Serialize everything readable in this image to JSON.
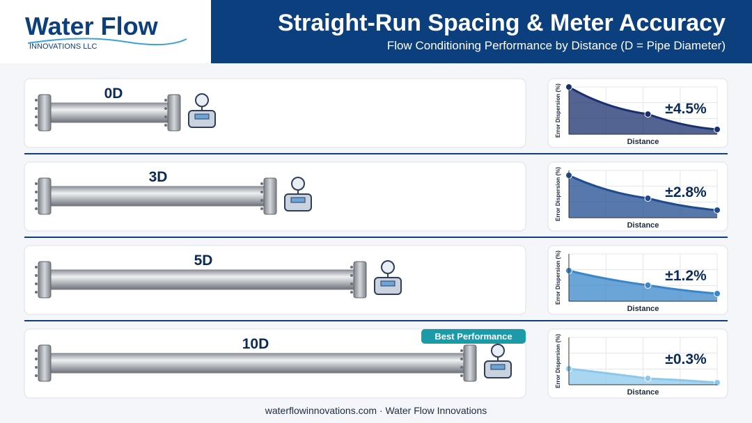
{
  "header": {
    "logo_name": "Water Flow",
    "logo_subtitle": "INNOVATIONS LLC",
    "title": "Straight-Run Spacing & Meter Accuracy",
    "subtitle": "Flow Conditioning Performance by Distance (D = Pipe Diameter)"
  },
  "rows": [
    {
      "label": "0D",
      "accuracy": "±4.5%",
      "y_label": "Error Dispersion (%)",
      "x_label": "Distance"
    },
    {
      "label": "3D",
      "accuracy": "±2.8%",
      "y_label": "Error Dispersion (%)",
      "x_label": "Distance"
    },
    {
      "label": "5D",
      "accuracy": "±1.2%",
      "y_label": "Error Dispersion (%)",
      "x_label": "Distance"
    },
    {
      "label": "10D",
      "accuracy": "±0.3%",
      "y_label": "Error Dispersion (%)",
      "x_label": "Distance",
      "badge": "Best Performance"
    }
  ],
  "footer": "waterflowinnovations.com · Water Flow Innovations"
}
